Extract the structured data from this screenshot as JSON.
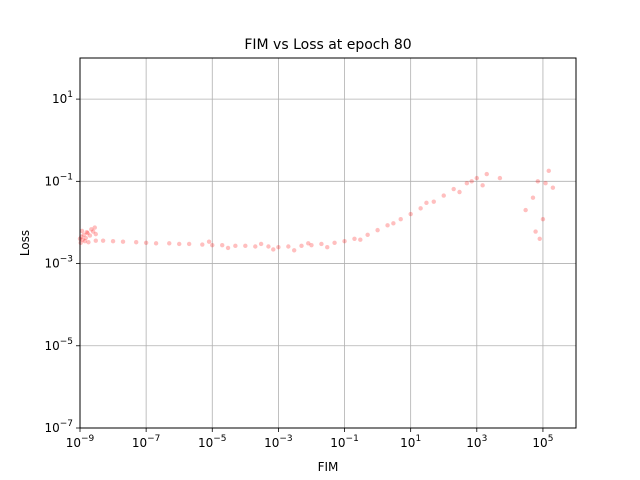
{
  "chart_data": {
    "type": "scatter",
    "title": "FIM vs Loss at epoch 80",
    "xlabel": "FIM",
    "ylabel": "Loss",
    "xscale": "log",
    "yscale": "log",
    "xlim": [
      1e-09,
      1000000.0
    ],
    "ylim": [
      1e-07,
      100
    ],
    "grid": true,
    "marker_color": "#ff0000",
    "marker_alpha": 0.25,
    "x_ticks": [
      {
        "value": 1e-09,
        "base": "10",
        "exp": "−9"
      },
      {
        "value": 1e-07,
        "base": "10",
        "exp": "−7"
      },
      {
        "value": 1e-05,
        "base": "10",
        "exp": "−5"
      },
      {
        "value": 0.001,
        "base": "10",
        "exp": "−3"
      },
      {
        "value": 0.1,
        "base": "10",
        "exp": "−1"
      },
      {
        "value": 10,
        "base": "10",
        "exp": "1"
      },
      {
        "value": 1000,
        "base": "10",
        "exp": "3"
      },
      {
        "value": 100000,
        "base": "10",
        "exp": "5"
      }
    ],
    "y_ticks": [
      {
        "value": 1e-07,
        "base": "10",
        "exp": "−7"
      },
      {
        "value": 1e-05,
        "base": "10",
        "exp": "−5"
      },
      {
        "value": 0.001,
        "base": "10",
        "exp": "−3"
      },
      {
        "value": 0.1,
        "base": "10",
        "exp": "−1"
      },
      {
        "value": 10,
        "base": "10",
        "exp": "1"
      }
    ],
    "series": [
      {
        "points": [
          [
            1e-09,
            0.004
          ],
          [
            1.1e-09,
            0.0045
          ],
          [
            1.2e-09,
            0.0038
          ],
          [
            1.3e-09,
            0.005
          ],
          [
            1.5e-09,
            0.0042
          ],
          [
            1.7e-09,
            0.0055
          ],
          [
            2e-09,
            0.0048
          ],
          [
            2.5e-09,
            0.006
          ],
          [
            3e-09,
            0.0052
          ],
          [
            1.05e-09,
            0.0032
          ],
          [
            1.4e-09,
            0.0035
          ],
          [
            2.2e-09,
            0.0068
          ],
          [
            2.8e-09,
            0.0075
          ],
          [
            1.8e-09,
            0.0033
          ],
          [
            1.15e-09,
            0.0062
          ],
          [
            3e-09,
            0.0036
          ],
          [
            1.6e-09,
            0.0058
          ],
          [
            5e-09,
            0.0036
          ],
          [
            1e-08,
            0.0035
          ],
          [
            2e-08,
            0.0034
          ],
          [
            5e-08,
            0.0033
          ],
          [
            1e-07,
            0.0032
          ],
          [
            2e-07,
            0.0031
          ],
          [
            5e-07,
            0.0031
          ],
          [
            1e-06,
            0.003
          ],
          [
            2e-06,
            0.003
          ],
          [
            5e-06,
            0.0029
          ],
          [
            1e-05,
            0.0028
          ],
          [
            2e-05,
            0.0028
          ],
          [
            5e-05,
            0.0027
          ],
          [
            0.0001,
            0.0027
          ],
          [
            0.0002,
            0.0026
          ],
          [
            0.0005,
            0.0026
          ],
          [
            0.001,
            0.0025
          ],
          [
            0.002,
            0.0026
          ],
          [
            0.005,
            0.0027
          ],
          [
            0.01,
            0.0028
          ],
          [
            0.02,
            0.003
          ],
          [
            0.05,
            0.0032
          ],
          [
            0.1,
            0.0035
          ],
          [
            0.2,
            0.004
          ],
          [
            0.5,
            0.005
          ],
          [
            1,
            0.0065
          ],
          [
            2,
            0.0085
          ],
          [
            5,
            0.012
          ],
          [
            10,
            0.016
          ],
          [
            20,
            0.022
          ],
          [
            50,
            0.032
          ],
          [
            100,
            0.045
          ],
          [
            200,
            0.065
          ],
          [
            500,
            0.09
          ],
          [
            1000,
            0.12
          ],
          [
            2000,
            0.15
          ],
          [
            5000,
            0.12
          ],
          [
            30000,
            0.02
          ],
          [
            50000,
            0.04
          ],
          [
            60000,
            0.006
          ],
          [
            70000,
            0.1
          ],
          [
            80000,
            0.004
          ],
          [
            100000,
            0.012
          ],
          [
            120000,
            0.09
          ],
          [
            150000,
            0.18
          ],
          [
            200000,
            0.07
          ],
          [
            8e-06,
            0.0034
          ],
          [
            3e-05,
            0.0024
          ],
          [
            0.0003,
            0.003
          ],
          [
            0.0007,
            0.0022
          ],
          [
            0.003,
            0.0021
          ],
          [
            0.008,
            0.0031
          ],
          [
            0.03,
            0.0025
          ],
          [
            0.3,
            0.0038
          ],
          [
            3,
            0.0095
          ],
          [
            30,
            0.03
          ],
          [
            300,
            0.055
          ],
          [
            700,
            0.1
          ],
          [
            1500,
            0.08
          ]
        ]
      }
    ]
  }
}
